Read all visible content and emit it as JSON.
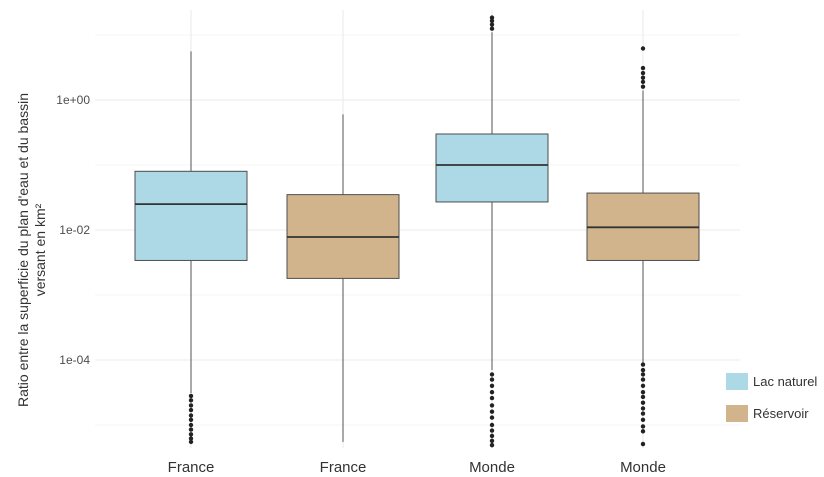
{
  "chart_data": {
    "type": "box",
    "ylabel_lines": [
      "Ratio entre la superficie du plan d'eau et du bassin",
      "versant en km²"
    ],
    "yscale": "log10",
    "ylim": [
      4.5e-06,
      25
    ],
    "yticks": [
      {
        "value": 1,
        "label": "1e+00"
      },
      {
        "value": 0.01,
        "label": "1e-02"
      },
      {
        "value": 0.0001,
        "label": "1e-04"
      }
    ],
    "categories": [
      "France",
      "France",
      "Monde",
      "Monde"
    ],
    "boxes": [
      {
        "category": "France",
        "group": "Lac naturel",
        "whisker_low": 3.1e-05,
        "q1": 0.0034,
        "median": 0.025,
        "q3": 0.08,
        "whisker_high": 5.6,
        "outliers": [
          2.8e-05,
          2.4e-05,
          2e-05,
          1.7e-05,
          1.4e-05,
          1.2e-05,
          1e-05,
          8.5e-06,
          7.2e-06,
          6.2e-06,
          5.5e-06
        ]
      },
      {
        "category": "France",
        "group": "Réservoir",
        "whisker_low": 5.5e-06,
        "q1": 0.0018,
        "median": 0.0078,
        "q3": 0.035,
        "whisker_high": 0.6,
        "outliers": []
      },
      {
        "category": "Monde",
        "group": "Lac naturel",
        "whisker_low": 7e-05,
        "q1": 0.027,
        "median": 0.1,
        "q3": 0.3,
        "whisker_high": 11,
        "outliers": [
          6e-05,
          5e-05,
          4e-05,
          3.2e-05,
          2.6e-05,
          2e-05,
          1.6e-05,
          1.3e-05,
          1e-05,
          8.2e-06,
          6.8e-06,
          5.7e-06,
          4.9e-06,
          12.5,
          14.5,
          16.5,
          18.5
        ]
      },
      {
        "category": "Monde",
        "group": "Réservoir",
        "whisker_low": 9e-05,
        "q1": 0.0034,
        "median": 0.011,
        "q3": 0.037,
        "whisker_high": 1.4,
        "outliers": [
          8.5e-05,
          7e-05,
          6e-05,
          5e-05,
          4e-05,
          3.2e-05,
          2.7e-05,
          2.2e-05,
          1.8e-05,
          1.5e-05,
          1.2e-05,
          9.5e-06,
          8e-06,
          5.1e-06,
          1.6,
          1.9,
          2.2,
          2.6,
          3.1,
          6.2
        ]
      }
    ],
    "legend": [
      {
        "label": "Lac naturel",
        "color": "#add8e6"
      },
      {
        "label": "Réservoir",
        "color": "#d2b48c"
      }
    ],
    "legend_position": "right",
    "grid": true
  },
  "colors": {
    "lac_naturel": "#add8e6",
    "reservoir": "#d2b48c",
    "box_border": "#4d4d4d",
    "gridline": "#ebebeb"
  }
}
